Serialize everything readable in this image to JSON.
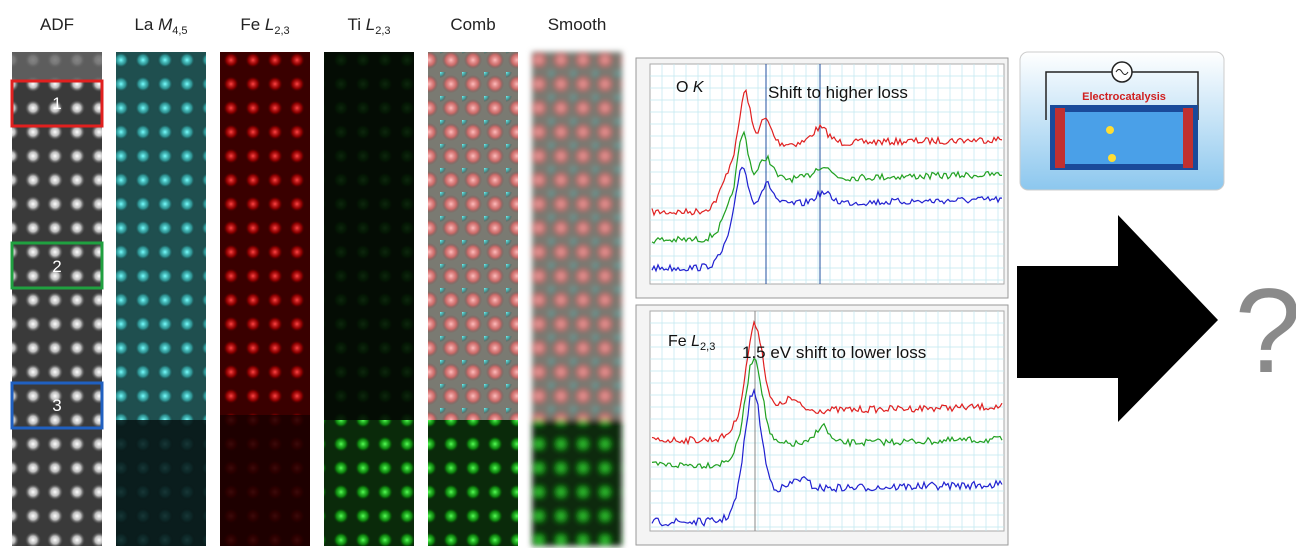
{
  "columns": [
    {
      "base": "ADF"
    },
    {
      "base": "La ",
      "italic": "M",
      "sub": "4,5"
    },
    {
      "base": "Fe ",
      "italic": "L",
      "sub": "2,3"
    },
    {
      "base": "Ti ",
      "italic": "L",
      "sub": "2,3"
    },
    {
      "base": "Comb"
    },
    {
      "base": "Smooth"
    }
  ],
  "regions": [
    "1",
    "2",
    "3"
  ],
  "spectra": {
    "top": {
      "edge_base": "O ",
      "edge_italic": "K",
      "note": "Shift to higher loss"
    },
    "bottom": {
      "edge_base": "Fe ",
      "edge_italic": "L",
      "edge_sub": "2,3",
      "note": "1.5 eV shift to lower loss"
    }
  },
  "schematic": {
    "label": "Electrocatalysis"
  },
  "question": "?"
}
